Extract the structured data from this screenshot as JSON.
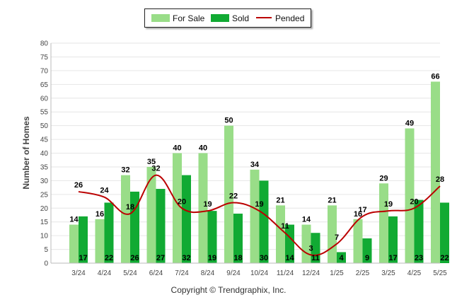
{
  "chart_data": {
    "type": "bar",
    "categories": [
      "3/24",
      "4/24",
      "5/24",
      "6/24",
      "7/24",
      "8/24",
      "9/24",
      "10/24",
      "11/24",
      "12/24",
      "1/25",
      "2/25",
      "3/25",
      "4/25",
      "5/25"
    ],
    "series": [
      {
        "name": "For Sale",
        "type": "bar",
        "color": "#99dd88",
        "values": [
          14,
          16,
          32,
          35,
          40,
          40,
          50,
          34,
          21,
          14,
          21,
          16,
          29,
          49,
          66
        ]
      },
      {
        "name": "Sold",
        "type": "bar",
        "color": "#11aa33",
        "values": [
          17,
          22,
          26,
          27,
          32,
          19,
          18,
          30,
          14,
          11,
          4,
          9,
          17,
          23,
          22
        ]
      },
      {
        "name": "Pended",
        "type": "line",
        "color": "#bb0000",
        "values": [
          26,
          24,
          18,
          32,
          20,
          19,
          22,
          19,
          11,
          3,
          7,
          17,
          19,
          20,
          28
        ]
      }
    ],
    "title": "",
    "xlabel": "",
    "ylabel": "Number of Homes",
    "ylim": [
      0,
      80
    ],
    "yticks": [
      0,
      5,
      10,
      15,
      20,
      25,
      30,
      35,
      40,
      45,
      50,
      55,
      60,
      65,
      70,
      75,
      80
    ],
    "grid": true,
    "legend": "top-center"
  },
  "copyright": "Copyright © Trendgraphix, Inc."
}
